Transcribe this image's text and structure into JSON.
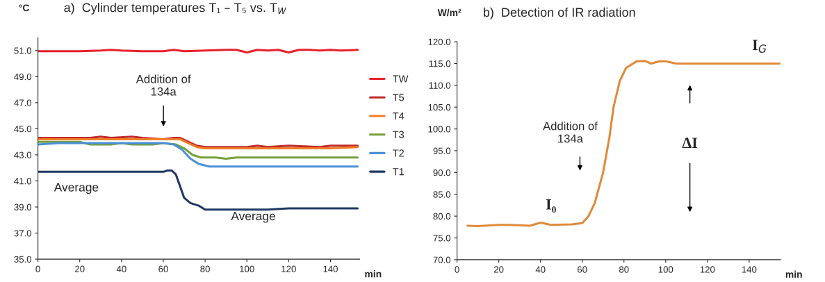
{
  "chart_data": [
    {
      "type": "line",
      "title": "a)  Cylinder temperatures T₁ – T₅ vs. T$_{W}$",
      "ylabel": "°C",
      "xlabel": "min",
      "xlim": [
        0,
        154
      ],
      "xticks": [
        0,
        20,
        40,
        60,
        80,
        100,
        120,
        140
      ],
      "ylim": [
        35,
        52
      ],
      "yticks": [
        {
          "value": 35,
          "label": "35.0"
        },
        {
          "value": 37,
          "label": "37.0"
        },
        {
          "value": 39,
          "label": "39.0"
        },
        {
          "value": 41,
          "label": "41.0"
        },
        {
          "value": 43,
          "label": "43.0"
        },
        {
          "value": 45,
          "label": "45.0"
        },
        {
          "value": 47,
          "label": "47.0"
        },
        {
          "value": 49,
          "label": "49.0"
        },
        {
          "value": 51,
          "label": "51.0"
        }
      ],
      "legend": "right",
      "grid": false,
      "marker": "none",
      "line_style": "solid",
      "series": [
        {
          "name": "TW",
          "color": "#e8202a",
          "x": [
            0,
            10,
            20,
            30,
            35,
            40,
            50,
            60,
            65,
            70,
            80,
            90,
            95,
            100,
            105,
            110,
            115,
            120,
            125,
            130,
            135,
            140,
            145,
            153
          ],
          "values": [
            50.95,
            50.95,
            50.95,
            51.0,
            51.05,
            51.0,
            50.95,
            50.95,
            51.05,
            50.95,
            51.0,
            51.05,
            51.05,
            50.85,
            51.05,
            51.0,
            51.05,
            50.85,
            51.05,
            51.05,
            51.0,
            51.05,
            51.0,
            51.05
          ]
        },
        {
          "name": "T5",
          "color": "#c0282a",
          "x": [
            0,
            25,
            30,
            35,
            45,
            50,
            60,
            65,
            68,
            72,
            76,
            80,
            100,
            105,
            110,
            120,
            135,
            140,
            153
          ],
          "values": [
            44.3,
            44.3,
            44.4,
            44.3,
            44.4,
            44.3,
            44.2,
            44.3,
            44.3,
            44.0,
            43.7,
            43.6,
            43.6,
            43.7,
            43.6,
            43.7,
            43.6,
            43.7,
            43.7
          ]
        },
        {
          "name": "T4",
          "color": "#f07c24",
          "x": [
            0,
            60,
            68,
            72,
            76,
            80,
            140,
            153
          ],
          "values": [
            44.2,
            44.2,
            44.2,
            43.9,
            43.6,
            43.5,
            43.5,
            43.6
          ]
        },
        {
          "name": "T3",
          "color": "#77a03c",
          "x": [
            0,
            20,
            25,
            35,
            40,
            45,
            55,
            60,
            66,
            70,
            74,
            78,
            85,
            90,
            95,
            153
          ],
          "values": [
            44.0,
            44.0,
            43.8,
            43.8,
            43.9,
            43.8,
            43.8,
            43.9,
            43.8,
            43.5,
            43.0,
            42.8,
            42.8,
            42.7,
            42.8,
            42.8
          ]
        },
        {
          "name": "T2",
          "color": "#4a90d8",
          "x": [
            0,
            10,
            60,
            65,
            69,
            73,
            77,
            82,
            153
          ],
          "values": [
            43.8,
            43.9,
            43.9,
            43.8,
            43.4,
            42.7,
            42.3,
            42.1,
            42.1
          ]
        },
        {
          "name": "T1",
          "color": "#1f3864",
          "x": [
            0,
            60,
            62,
            64,
            66,
            68,
            70,
            73,
            77,
            80,
            90,
            110,
            120,
            153
          ],
          "values": [
            41.7,
            41.7,
            41.8,
            41.8,
            41.5,
            40.6,
            39.7,
            39.3,
            39.1,
            38.8,
            38.8,
            38.8,
            38.9,
            38.9
          ]
        }
      ],
      "annotations": [
        "Addition of\n134a",
        "Average",
        "Average"
      ]
    },
    {
      "type": "line",
      "title": "b)  Detection of IR radiation",
      "ylabel": "W/m²",
      "xlabel": "min",
      "xlim": [
        0,
        155
      ],
      "xticks": [
        0,
        20,
        40,
        60,
        80,
        100,
        120,
        140
      ],
      "ylim": [
        70,
        120
      ],
      "yticks": [
        {
          "value": 70,
          "label": "70.0"
        },
        {
          "value": 75,
          "label": "75.0"
        },
        {
          "value": 80,
          "label": "80.0"
        },
        {
          "value": 85,
          "label": "85.0"
        },
        {
          "value": 90,
          "label": "90.0"
        },
        {
          "value": 95,
          "label": "95.0"
        },
        {
          "value": 100,
          "label": "100.0"
        },
        {
          "value": 105,
          "label": "105.0"
        },
        {
          "value": 110,
          "label": "110.0"
        },
        {
          "value": 115,
          "label": "115.0"
        },
        {
          "value": 120,
          "label": "120.0"
        }
      ],
      "grid": false,
      "marker": "none",
      "line_style": "solid",
      "series": [
        {
          "color": "#e08a3a",
          "x": [
            5,
            10,
            20,
            25,
            35,
            40,
            45,
            55,
            60,
            63,
            66,
            70,
            73,
            75,
            78,
            81,
            86,
            90,
            93,
            97,
            100,
            105,
            120,
            155
          ],
          "values": [
            77.8,
            77.7,
            78.0,
            78.0,
            77.8,
            78.5,
            78.0,
            78.1,
            78.4,
            80,
            83,
            90,
            98,
            105,
            111,
            114,
            115.5,
            115.6,
            115.0,
            115.5,
            115.5,
            115.0,
            115.0,
            115.0
          ]
        }
      ],
      "annotations": [
        "Addition of\n134a",
        {
          "text": "I₀",
          "x": 45,
          "y": 79
        },
        {
          "text": "I$_{G}$",
          "x": 145,
          "y": 116
        },
        "ΔI"
      ]
    }
  ]
}
